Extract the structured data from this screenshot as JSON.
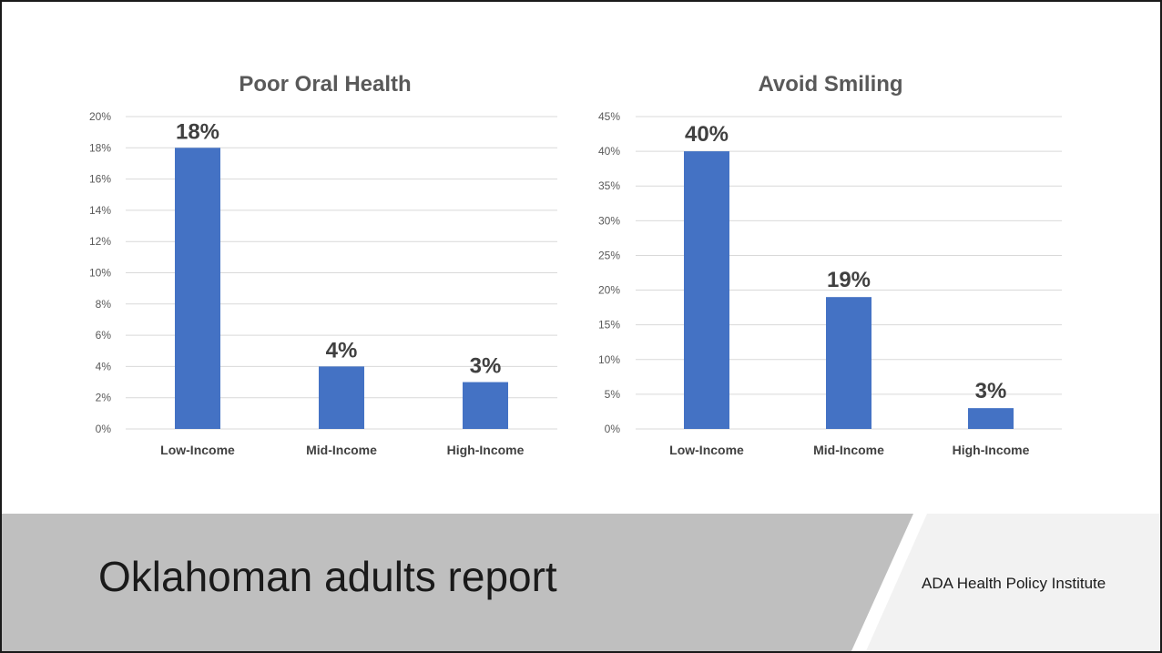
{
  "slide": {
    "title": "Oklahoman adults report",
    "organization": "ADA Health Policy Institute",
    "colors": {
      "bar": "#4472c4",
      "band_dark": "#bfbfbf",
      "band_light": "#f2f2f2",
      "grid": "#d9d9d9"
    }
  },
  "chart_data": [
    {
      "type": "bar",
      "title": "Poor Oral Health",
      "xlabel": "",
      "ylabel": "",
      "categories": [
        "Low-Income",
        "Mid-Income",
        "High-Income"
      ],
      "values": [
        18,
        4,
        3
      ],
      "data_labels": [
        "18%",
        "4%",
        "3%"
      ],
      "ylim": [
        0,
        20
      ],
      "yticks": [
        "0%",
        "2%",
        "4%",
        "6%",
        "8%",
        "10%",
        "12%",
        "14%",
        "16%",
        "18%",
        "20%"
      ],
      "grid": true,
      "legend": "none"
    },
    {
      "type": "bar",
      "title": "Avoid Smiling",
      "xlabel": "",
      "ylabel": "",
      "categories": [
        "Low-Income",
        "Mid-Income",
        "High-Income"
      ],
      "values": [
        40,
        19,
        3
      ],
      "data_labels": [
        "40%",
        "19%",
        "3%"
      ],
      "ylim": [
        0,
        45
      ],
      "yticks": [
        "0%",
        "5%",
        "10%",
        "15%",
        "20%",
        "25%",
        "30%",
        "35%",
        "40%",
        "45%"
      ],
      "grid": true,
      "legend": "none"
    }
  ]
}
